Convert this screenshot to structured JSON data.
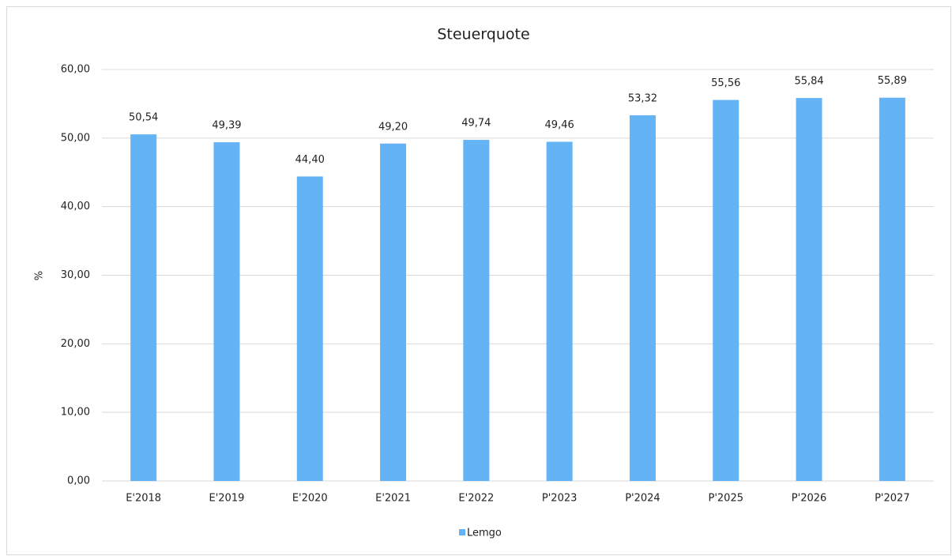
{
  "chart_data": {
    "type": "bar",
    "title": "Steuerquote",
    "y_label": "%",
    "categories": [
      "E'2018",
      "E'2019",
      "E'2020",
      "E'2021",
      "E'2022",
      "P'2023",
      "P'2024",
      "P'2025",
      "P'2026",
      "P'2027"
    ],
    "series": [
      {
        "name": "Lemgo",
        "color": "#63b3f5",
        "values": [
          50.54,
          49.39,
          44.4,
          49.2,
          49.74,
          49.46,
          53.32,
          55.56,
          55.84,
          55.89
        ],
        "value_labels": [
          "50,54",
          "49,39",
          "44,40",
          "49,20",
          "49,74",
          "49,46",
          "53,32",
          "55,56",
          "55,84",
          "55,89"
        ]
      }
    ],
    "ylim": [
      0,
      60
    ],
    "yticks": [
      {
        "value": 0,
        "label": "0,00"
      },
      {
        "value": 10,
        "label": "10,00"
      },
      {
        "value": 20,
        "label": "20,00"
      },
      {
        "value": 30,
        "label": "30,00"
      },
      {
        "value": 40,
        "label": "40,00"
      },
      {
        "value": 50,
        "label": "50,00"
      },
      {
        "value": 60,
        "label": "60,00"
      }
    ],
    "grid": true,
    "legend": "bottom"
  }
}
